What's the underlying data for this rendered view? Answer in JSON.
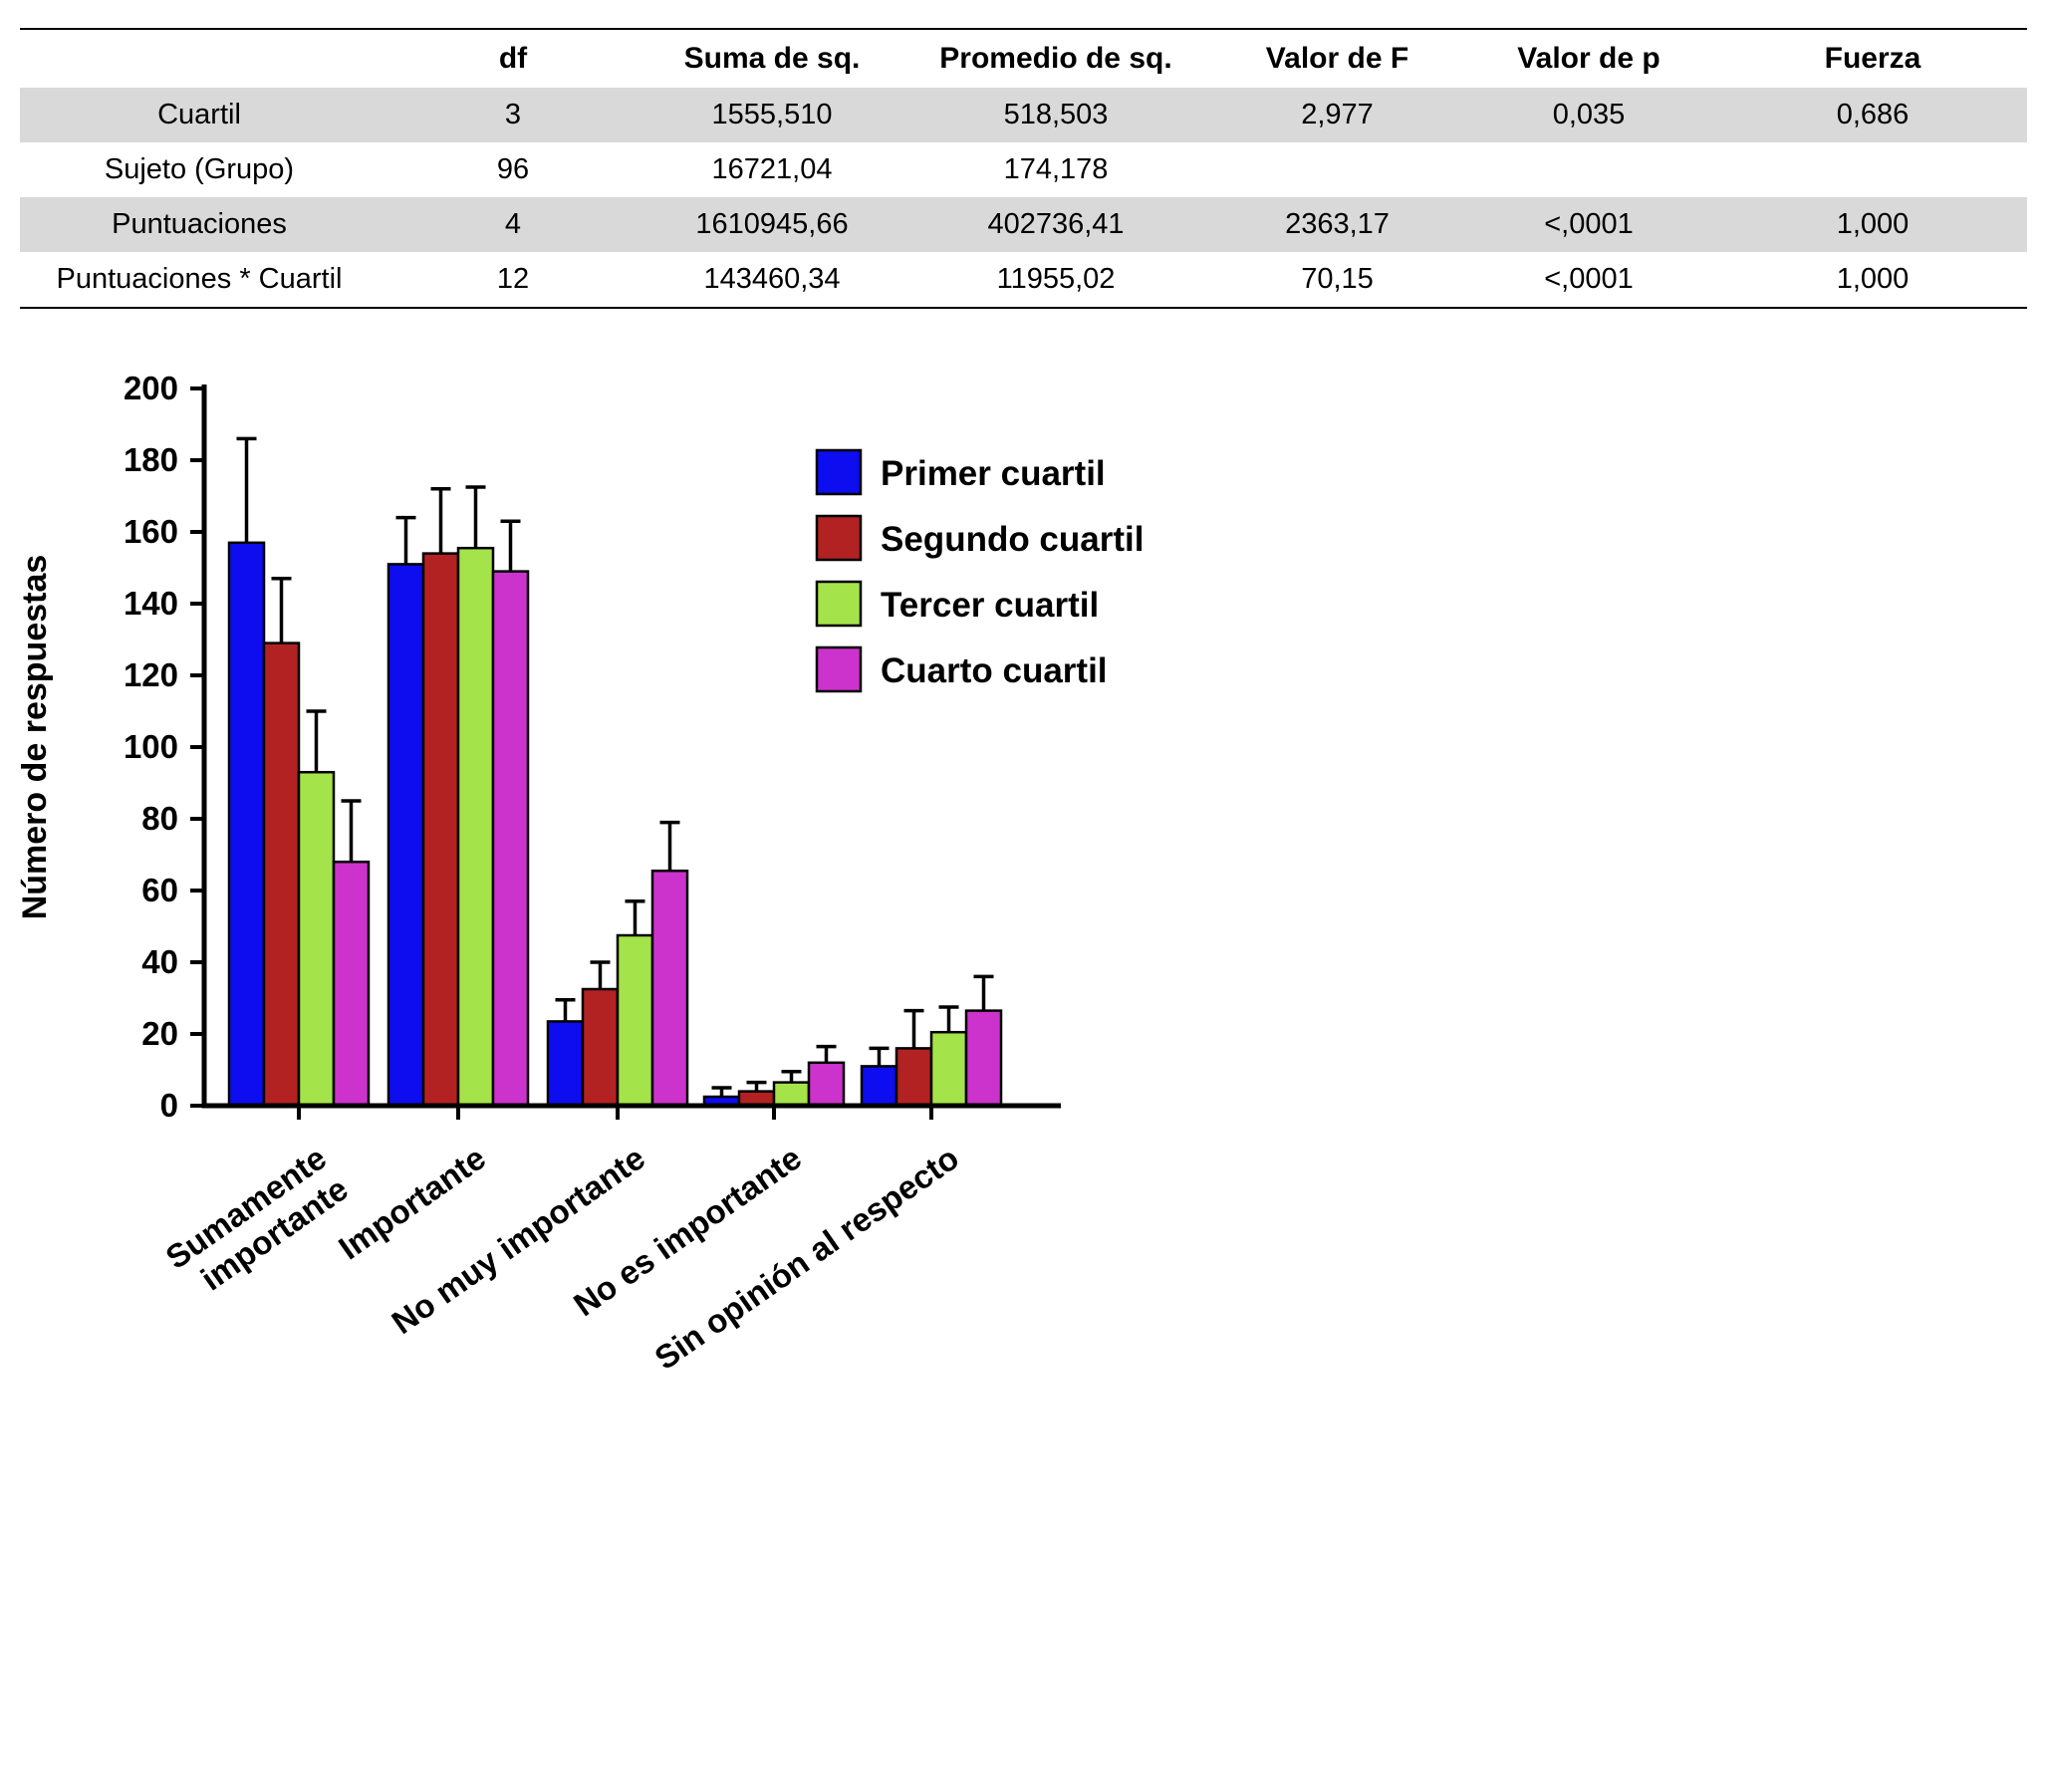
{
  "table": {
    "headers": [
      "",
      "df",
      "Suma de sq.",
      "Promedio de sq.",
      "Valor de F",
      "Valor de p",
      "Fuerza"
    ],
    "rows": [
      {
        "label": "Cuartil",
        "cells": [
          "3",
          "1555,510",
          "518,503",
          "2,977",
          "0,035",
          "0,686"
        ],
        "shaded": true
      },
      {
        "label": "Sujeto (Grupo)",
        "cells": [
          "96",
          "16721,04",
          "174,178",
          "",
          "",
          ""
        ],
        "shaded": false
      },
      {
        "label": "Puntuaciones",
        "cells": [
          "4",
          "1610945,66",
          "402736,41",
          "2363,17",
          "<,0001",
          "1,000"
        ],
        "shaded": true
      },
      {
        "label": "Puntuaciones * Cuartil",
        "cells": [
          "12",
          "143460,34",
          "11955,02",
          "70,15",
          "<,0001",
          "1,000"
        ],
        "shaded": false
      }
    ]
  },
  "chart_data": {
    "type": "bar",
    "title": "",
    "xlabel": "",
    "ylabel": "Número de respuestas",
    "ylim": [
      0,
      200
    ],
    "ytick_step": 20,
    "grid": false,
    "legend_position": "upper-right-inside",
    "categories": [
      "Sumamente\nimportante",
      "Importante",
      "No muy importante",
      "No es importante",
      "Sin opinión al respecto"
    ],
    "series": [
      {
        "name": "Primer cuartil",
        "color": "#0d0df0",
        "values": [
          157,
          151,
          23.5,
          2.5,
          11
        ],
        "error_upper": [
          186,
          164,
          29.5,
          5,
          16
        ]
      },
      {
        "name": "Segundo cuartil",
        "color": "#b22222",
        "values": [
          129,
          154,
          32.5,
          4,
          16
        ],
        "error_upper": [
          147,
          172,
          40,
          6.5,
          26.5
        ]
      },
      {
        "name": "Tercer cuartil",
        "color": "#a4e34a",
        "values": [
          93,
          155.5,
          47.5,
          6.5,
          20.5
        ],
        "error_upper": [
          110,
          172.5,
          57,
          9.5,
          27.5
        ]
      },
      {
        "name": "Cuarto cuartil",
        "color": "#cc33cc",
        "values": [
          68,
          149,
          65.5,
          12,
          26.5
        ],
        "error_upper": [
          85,
          163,
          79,
          16.5,
          36
        ]
      }
    ]
  }
}
